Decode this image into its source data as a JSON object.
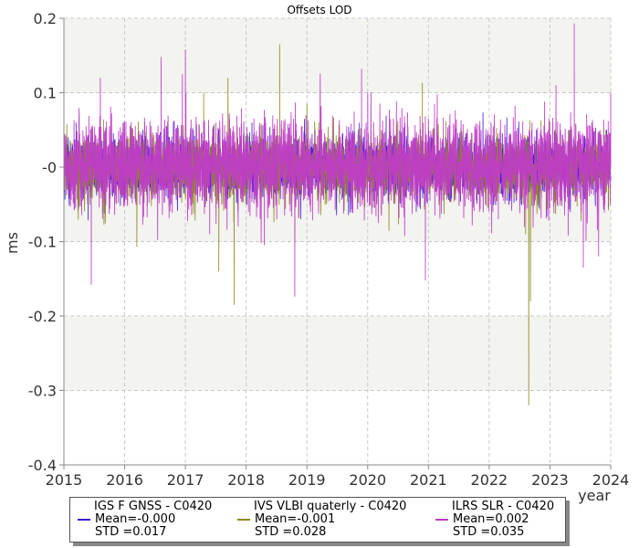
{
  "chart_data": {
    "type": "line",
    "title": "Offsets LOD",
    "xlabel": "year",
    "ylabel": "ms",
    "xlim": [
      2015,
      2024
    ],
    "ylim": [
      -0.4,
      0.2
    ],
    "x_ticks": [
      "2015",
      "2016",
      "2017",
      "2018",
      "2019",
      "2020",
      "2021",
      "2022",
      "2023",
      "2024"
    ],
    "y_ticks": [
      "0.2",
      "0.1",
      "-0",
      "-0.1",
      "-0.2",
      "-0.3",
      "-0.4"
    ],
    "grid": true,
    "legend_position": "bottom",
    "series": [
      {
        "name": "IGS F GNSS - C0420",
        "color": "#3a1fd6",
        "mean_label": "Mean=-0.000",
        "std_label": "STD =0.017",
        "mean": 0.0,
        "std": 0.017,
        "extremes": [
          [
            2015.2,
            0.06
          ],
          [
            2016.3,
            0.05
          ],
          [
            2018.9,
            -0.07
          ],
          [
            2020.8,
            -0.06
          ],
          [
            2022.7,
            0.05
          ]
        ]
      },
      {
        "name": "IVS VLBI quaterly - C0420",
        "color": "#8a8a1a",
        "mean_label": "Mean=-0.001",
        "std_label": "STD =0.028",
        "mean": -0.001,
        "std": 0.028,
        "extremes": [
          [
            2016.2,
            -0.107
          ],
          [
            2017.3,
            0.1
          ],
          [
            2017.55,
            -0.14
          ],
          [
            2017.7,
            0.12
          ],
          [
            2017.8,
            -0.185
          ],
          [
            2018.55,
            0.165
          ],
          [
            2018.8,
            -0.1
          ],
          [
            2019.0,
            0.085
          ],
          [
            2020.9,
            0.113
          ],
          [
            2022.6,
            -0.09
          ],
          [
            2022.65,
            -0.32
          ],
          [
            2022.68,
            -0.18
          ]
        ]
      },
      {
        "name": "ILRS SLR - C0420",
        "color": "#c03cc8",
        "mean_label": "Mean=0.002",
        "std_label": "STD =0.035",
        "mean": 0.002,
        "std": 0.035,
        "extremes": [
          [
            2015.45,
            -0.158
          ],
          [
            2015.6,
            0.12
          ],
          [
            2016.6,
            0.148
          ],
          [
            2016.95,
            0.125
          ],
          [
            2017.0,
            0.158
          ],
          [
            2017.4,
            -0.09
          ],
          [
            2018.3,
            -0.105
          ],
          [
            2018.8,
            -0.174
          ],
          [
            2019.9,
            0.132
          ],
          [
            2020.0,
            0.1
          ],
          [
            2020.95,
            -0.152
          ],
          [
            2021.1,
            0.085
          ],
          [
            2022.15,
            -0.07
          ],
          [
            2023.1,
            0.11
          ],
          [
            2023.3,
            -0.092
          ],
          [
            2023.4,
            0.193
          ],
          [
            2023.55,
            -0.135
          ],
          [
            2023.8,
            -0.12
          ],
          [
            2024.0,
            0.1
          ]
        ]
      }
    ]
  }
}
